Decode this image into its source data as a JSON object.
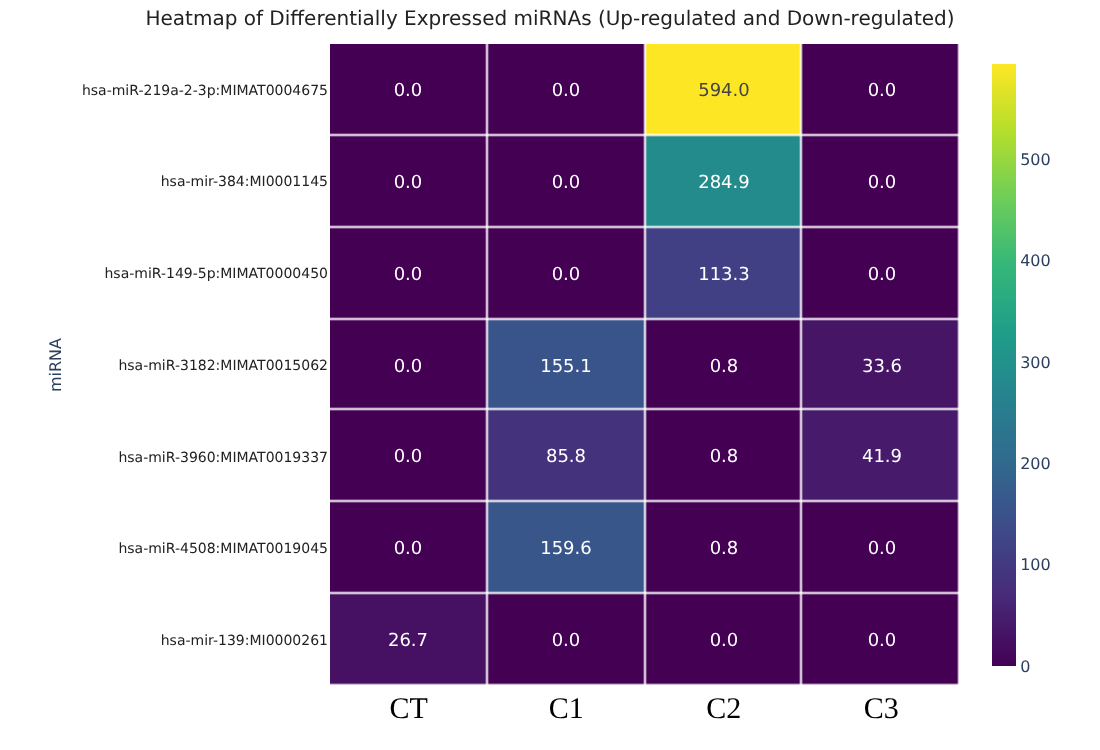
{
  "chart_data": {
    "type": "heatmap",
    "title": "Heatmap of Differentially Expressed miRNAs (Up-regulated and Down-regulated)",
    "ylabel": "miRNA",
    "categories": [
      "CT",
      "C1",
      "C2",
      "C3"
    ],
    "y_categories": [
      "hsa-miR-219a-2-3p:MIMAT0004675",
      "hsa-mir-384:MI0001145",
      "hsa-miR-149-5p:MIMAT0000450",
      "hsa-miR-3182:MIMAT0015062",
      "hsa-miR-3960:MIMAT0019337",
      "hsa-miR-4508:MIMAT0019045",
      "hsa-mir-139:MI0000261"
    ],
    "cells": [
      [
        0,
        0,
        594.0,
        0
      ],
      [
        0,
        0,
        284.9,
        0
      ],
      [
        0,
        0,
        113.3,
        0
      ],
      [
        0,
        155.1,
        0.8,
        33.6
      ],
      [
        0,
        85.8,
        0.8,
        41.9
      ],
      [
        0,
        159.6,
        0.8,
        0
      ],
      [
        26.7,
        0,
        0,
        0
      ]
    ],
    "cell_labels": [
      [
        "0.0",
        "0.0",
        "594.0",
        "0.0"
      ],
      [
        "0.0",
        "0.0",
        "284.9",
        "0.0"
      ],
      [
        "0.0",
        "0.0",
        "113.3",
        "0.0"
      ],
      [
        "0.0",
        "155.1",
        "0.8",
        "33.6"
      ],
      [
        "0.0",
        "85.8",
        "0.8",
        "41.9"
      ],
      [
        "0.0",
        "159.6",
        "0.8",
        "0.0"
      ],
      [
        "26.7",
        "0.0",
        "0.0",
        "0.0"
      ]
    ],
    "clim": [
      0,
      594
    ],
    "cticks": [
      0,
      100,
      200,
      300,
      400,
      500
    ]
  }
}
